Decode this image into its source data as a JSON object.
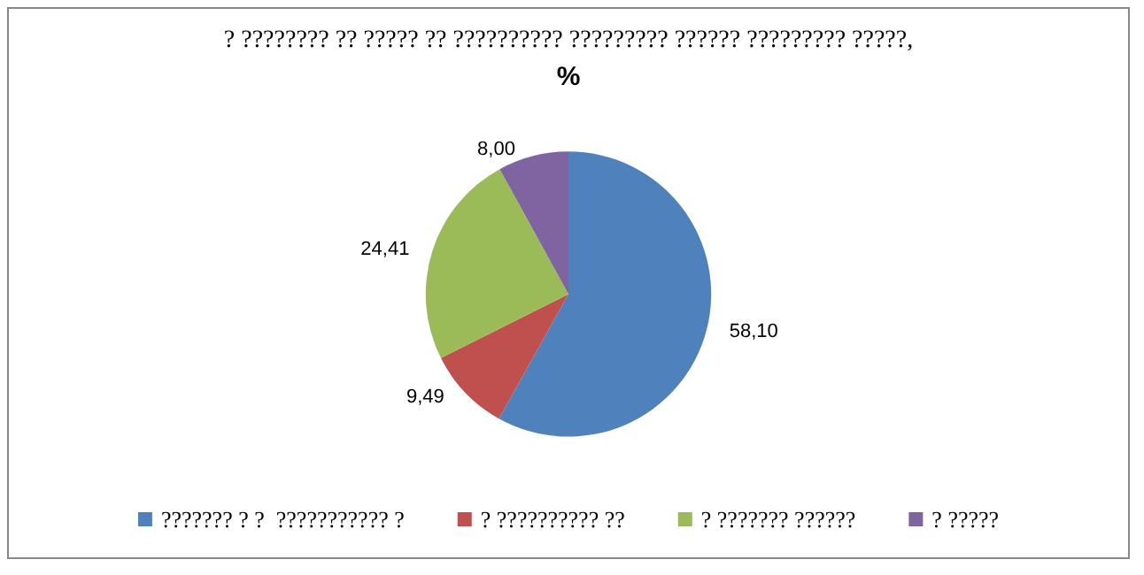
{
  "chart_data": {
    "type": "pie",
    "title": "? ???????? ?? ????? ?? ?????????? ????????? ?????? ????????? ?????,",
    "subtitle": "%",
    "categories": [
      "??????? ? ?  ??????????? ?",
      "? ?????????? ??",
      "? ??????? ??????",
      "? ?????"
    ],
    "values": [
      58.1,
      9.49,
      24.41,
      8.0
    ],
    "colors": [
      "#4f81bd",
      "#c0504d",
      "#9bbb59",
      "#8064a2"
    ],
    "value_labels": [
      "58,10",
      "9,49",
      "24,41",
      "8,00"
    ],
    "legend": "bottom"
  }
}
